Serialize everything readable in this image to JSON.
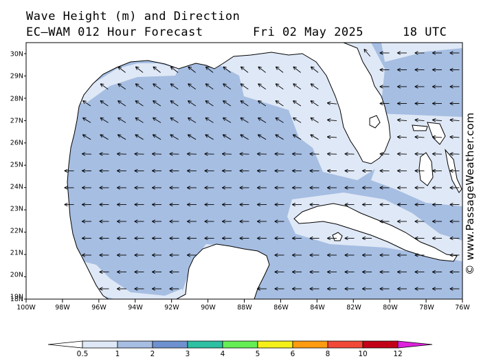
{
  "title_line1": "Wave Height (m) and Direction",
  "title_line2": "EC—WAM 012 Hour Forecast",
  "date_label": "Fri 02 May 2025",
  "time_label": "18 UTC",
  "credit": "© www.PassageWeather.com",
  "x_ticks": [
    "100W",
    "98W",
    "96W",
    "94W",
    "92W",
    "90W",
    "88W",
    "86W",
    "84W",
    "82W",
    "80W",
    "78W",
    "76W"
  ],
  "y_ticks": [
    "30N",
    "29N",
    "28N",
    "27N",
    "26N",
    "25N",
    "24N",
    "23N",
    "22N",
    "21N",
    "20N",
    "19N",
    "18N"
  ],
  "colorbar": {
    "labels": [
      "0.5",
      "1",
      "2",
      "3",
      "4",
      "5",
      "6",
      "8",
      "10",
      "12"
    ],
    "colors": [
      "#dfe8f6",
      "#a6bee2",
      "#6e92cf",
      "#2ec0a2",
      "#66ee55",
      "#f5f019",
      "#ff9b10",
      "#f24838",
      "#c20018",
      "#dd22dd"
    ]
  },
  "arrow_color": "#000000",
  "land_color": "#ffffff",
  "coast_color": "#000000"
}
